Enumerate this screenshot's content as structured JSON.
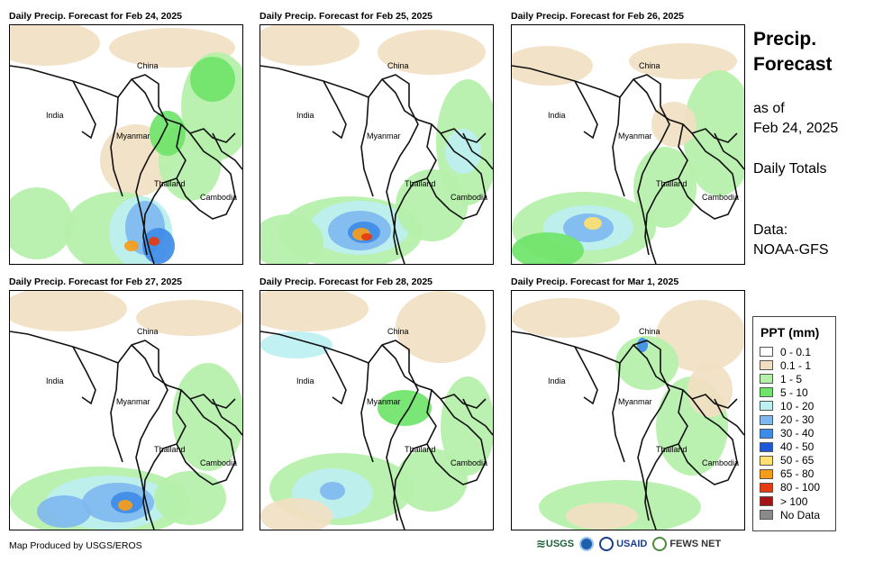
{
  "panels": [
    {
      "title": "Daily Precip. Forecast for Feb 24, 2025"
    },
    {
      "title": "Daily Precip. Forecast for Feb 25, 2025"
    },
    {
      "title": "Daily Precip. Forecast for Feb 26, 2025"
    },
    {
      "title": "Daily Precip. Forecast for Feb 27, 2025"
    },
    {
      "title": "Daily Precip. Forecast for Feb 28, 2025"
    },
    {
      "title": "Daily Precip. Forecast for Mar 1, 2025"
    }
  ],
  "map_labels": {
    "china": "China",
    "india": "India",
    "myanmar": "Myanmar",
    "thailand": "Thailand",
    "cambodia": "Cambodia"
  },
  "sidebar": {
    "title_line1": "Precip.",
    "title_line2": "Forecast",
    "asof_line1": "as of",
    "asof_line2": "Feb 24, 2025",
    "totals": "Daily Totals",
    "data_line1": "Data:",
    "data_line2": "NOAA-GFS"
  },
  "legend": {
    "title": "PPT (mm)",
    "items": [
      {
        "label": "0 - 0.1",
        "color": "#ffffff"
      },
      {
        "label": "0.1 - 1",
        "color": "#f1dfc3"
      },
      {
        "label": "1 - 5",
        "color": "#b5f0a9"
      },
      {
        "label": "5 - 10",
        "color": "#6fe46a"
      },
      {
        "label": "10 - 20",
        "color": "#bdf0f2"
      },
      {
        "label": "20 - 30",
        "color": "#7fb8ef"
      },
      {
        "label": "30 - 40",
        "color": "#3f8ce8"
      },
      {
        "label": "40 - 50",
        "color": "#1f58d6"
      },
      {
        "label": "50 - 65",
        "color": "#ffe070"
      },
      {
        "label": "65 - 80",
        "color": "#f59d1a"
      },
      {
        "label": "80 - 100",
        "color": "#e43b10"
      },
      {
        "label": "> 100",
        "color": "#a51414"
      },
      {
        "label": "No Data",
        "color": "#8a8a8a"
      }
    ]
  },
  "footer": {
    "credit": "Map Produced by USGS/EROS",
    "logo_usgs": "USGS",
    "logo_usaid": "USAID",
    "logo_fews": "FEWS NET"
  }
}
